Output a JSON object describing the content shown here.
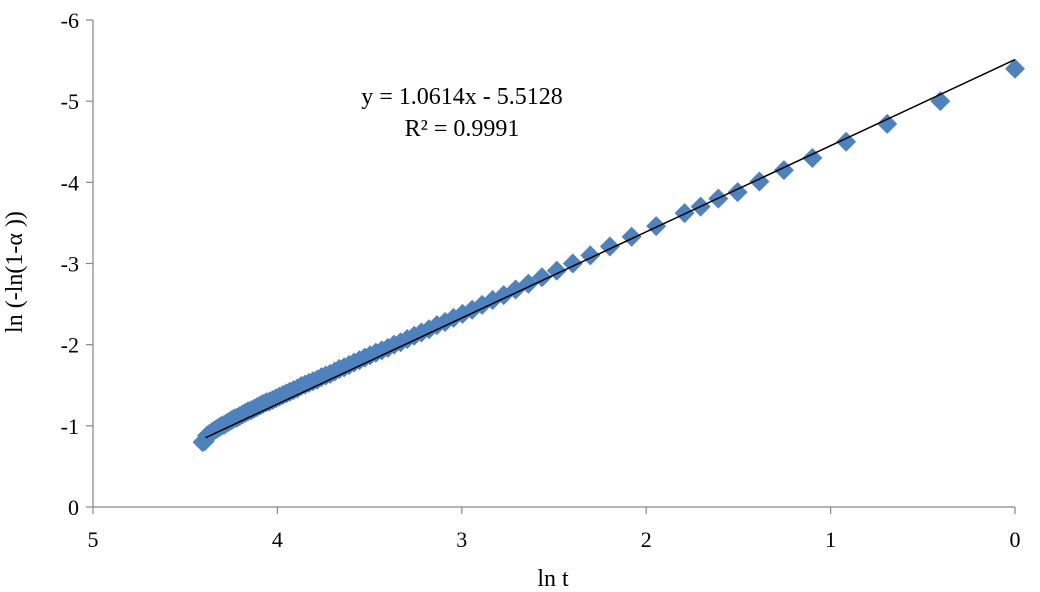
{
  "chart_data": {
    "type": "scatter",
    "xlabel": "ln t",
    "ylabel": "ln (-ln(1-α ))",
    "xlim": [
      5,
      0
    ],
    "ylim": [
      0,
      -6
    ],
    "x_reversed": true,
    "y_reversed": true,
    "xticks": [
      "5",
      "4",
      "3",
      "2",
      "1",
      "0"
    ],
    "yticks": [
      "0",
      "-1",
      "-2",
      "-3",
      "-4",
      "-5",
      "-6"
    ],
    "grid": false,
    "legend": "none",
    "marker": "diamond",
    "marker_color": "#4F81BD",
    "trendline_color": "#000000",
    "trendline": {
      "slope": 1.0614,
      "intercept": -5.5128,
      "x_range": [
        0,
        4.39
      ],
      "equation_label": "y = 1.0614x - 5.5128",
      "r2_label": "R² = 0.9991"
    },
    "series": [
      {
        "values_ln_t": [
          0.0,
          0.693,
          1.099,
          1.386,
          1.609,
          1.792,
          1.946,
          2.079,
          2.197,
          2.303,
          2.398,
          2.485,
          2.565,
          2.639,
          2.708,
          2.773,
          2.833,
          2.89,
          2.944,
          2.996,
          3.045,
          3.091,
          3.135,
          3.178,
          3.219,
          3.258,
          3.296,
          3.332,
          3.367,
          3.401,
          3.434,
          3.466,
          3.497,
          3.526,
          3.555,
          3.584,
          3.611,
          3.638,
          3.664,
          3.689,
          3.714,
          3.738,
          3.761,
          3.784,
          3.807,
          3.829,
          3.85,
          3.871,
          3.892,
          3.912,
          3.932,
          3.951,
          3.97,
          3.989,
          4.007,
          4.025,
          4.043,
          4.06,
          4.078,
          4.094,
          4.111,
          4.127,
          4.143,
          4.159,
          4.174,
          4.19,
          4.205,
          4.22,
          4.234,
          4.248,
          4.263,
          4.277,
          4.29,
          4.304,
          4.317,
          4.331,
          4.344,
          4.357,
          4.369,
          4.382,
          0.405
        ],
        "values_y": [
          -5.4,
          -4.72,
          -4.3,
          -4.01,
          -3.8,
          -3.62,
          -3.46,
          -3.33,
          -3.21,
          -3.1,
          -3.0,
          -2.91,
          -2.83,
          -2.75,
          -2.68,
          -2.61,
          -2.55,
          -2.49,
          -2.43,
          -2.38,
          -2.33,
          -2.28,
          -2.24,
          -2.19,
          -2.15,
          -2.11,
          -2.07,
          -2.03,
          -2.0,
          -1.96,
          -1.93,
          -1.9,
          -1.87,
          -1.84,
          -1.81,
          -1.78,
          -1.75,
          -1.72,
          -1.7,
          -1.67,
          -1.64,
          -1.62,
          -1.6,
          -1.57,
          -1.55,
          -1.53,
          -1.51,
          -1.49,
          -1.46,
          -1.44,
          -1.42,
          -1.4,
          -1.38,
          -1.36,
          -1.34,
          -1.32,
          -1.3,
          -1.29,
          -1.27,
          -1.25,
          -1.23,
          -1.21,
          -1.19,
          -1.18,
          -1.16,
          -1.14,
          -1.12,
          -1.1,
          -1.09,
          -1.07,
          -1.05,
          -1.03,
          -1.01,
          -1.0,
          -0.98,
          -0.96,
          -0.94,
          -0.92,
          -0.9,
          -0.88,
          -5.0
        ],
        "extra_points": [
          {
            "x": 0.916,
            "y": -4.5
          },
          {
            "x": 1.253,
            "y": -4.15
          },
          {
            "x": 1.504,
            "y": -3.88
          },
          {
            "x": 1.705,
            "y": -3.7
          },
          {
            "x": 4.394,
            "y": -0.81
          },
          {
            "x": 4.406,
            "y": -0.8
          }
        ]
      }
    ]
  }
}
